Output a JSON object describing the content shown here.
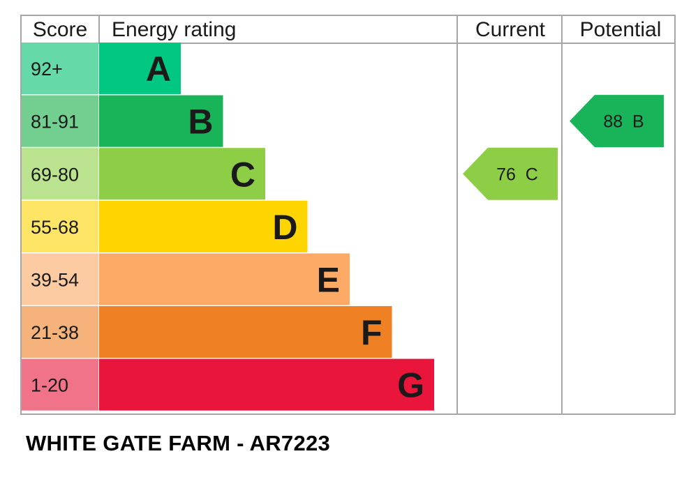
{
  "headers": {
    "score": "Score",
    "energy_rating": "Energy rating",
    "current": "Current",
    "potential": "Potential"
  },
  "chart_data": {
    "type": "bar",
    "bands": [
      {
        "range": "92+",
        "letter": "A",
        "color": "#00c781",
        "score_color": "#66d9a8",
        "letter_color": "#1a1a1a"
      },
      {
        "range": "81-91",
        "letter": "B",
        "color": "#19b459",
        "score_color": "#72cf8f",
        "letter_color": "#1a1a1a"
      },
      {
        "range": "69-80",
        "letter": "C",
        "color": "#8dce46",
        "score_color": "#bbe28f",
        "letter_color": "#1a1a1a"
      },
      {
        "range": "55-68",
        "letter": "D",
        "color": "#ffd500",
        "score_color": "#ffe566",
        "letter_color": "#1a1a1a"
      },
      {
        "range": "39-54",
        "letter": "E",
        "color": "#fcaa65",
        "score_color": "#fdcba2",
        "letter_color": "#1a1a1a"
      },
      {
        "range": "21-38",
        "letter": "F",
        "color": "#ef8023",
        "score_color": "#f5b37b",
        "letter_color": "#1a1a1a"
      },
      {
        "range": "1-20",
        "letter": "G",
        "color": "#e9153b",
        "score_color": "#f17389",
        "letter_color": "#1a1a1a"
      }
    ],
    "current": {
      "value": 76,
      "band": "C",
      "label": "76  C",
      "color": "#8dce46"
    },
    "potential": {
      "value": 88,
      "band": "B",
      "label": "88  B",
      "color": "#19b459"
    }
  },
  "footer": "WHITE GATE FARM - AR7223"
}
